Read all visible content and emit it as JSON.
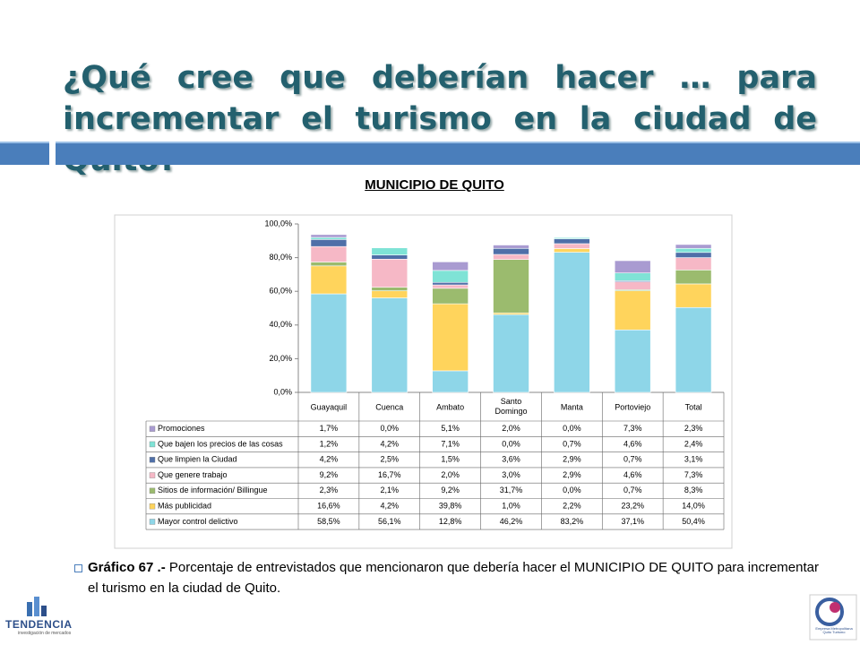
{
  "title": "¿Qué cree que deberían hacer … para incrementar el turismo en la ciudad de Quito?",
  "chart_data": {
    "type": "stacked-bar",
    "title": "MUNICIPIO DE QUITO",
    "categories": [
      "Guayaquil",
      "Cuenca",
      "Ambato",
      "Santo Domingo",
      "Manta",
      "Portoviejo",
      "Total"
    ],
    "ylim": [
      0,
      100
    ],
    "yticks": [
      {
        "value": 0,
        "label": "0,0%"
      },
      {
        "value": 20,
        "label": "20,0%"
      },
      {
        "value": 40,
        "label": "40,0%"
      },
      {
        "value": 60,
        "label": "60,0%"
      },
      {
        "value": 80,
        "label": "80,0%"
      },
      {
        "value": 100,
        "label": "100,0%"
      }
    ],
    "grid": false,
    "series": [
      {
        "name": "Promociones",
        "color": "#a99bd1",
        "values": [
          1.7,
          0.0,
          5.1,
          2.0,
          0.0,
          7.3,
          2.3
        ],
        "value_labels": [
          "1,7%",
          "0,0%",
          "5,1%",
          "2,0%",
          "0,0%",
          "7,3%",
          "2,3%"
        ]
      },
      {
        "name": "Que bajen los precios de las cosas",
        "color": "#7fe3d6",
        "values": [
          1.2,
          4.2,
          7.1,
          0.0,
          0.7,
          4.6,
          2.4
        ],
        "value_labels": [
          "1,2%",
          "4,2%",
          "7,1%",
          "0,0%",
          "0,7%",
          "4,6%",
          "2,4%"
        ]
      },
      {
        "name": "Que limpien la Ciudad",
        "color": "#4f6fa8",
        "values": [
          4.2,
          2.5,
          1.5,
          3.6,
          2.9,
          0.7,
          3.1
        ],
        "value_labels": [
          "4,2%",
          "2,5%",
          "1,5%",
          "3,6%",
          "2,9%",
          "0,7%",
          "3,1%"
        ]
      },
      {
        "name": "Que genere trabajo",
        "color": "#f6b8c6",
        "values": [
          9.2,
          16.7,
          2.0,
          3.0,
          2.9,
          4.6,
          7.3
        ],
        "value_labels": [
          "9,2%",
          "16,7%",
          "2,0%",
          "3,0%",
          "2,9%",
          "4,6%",
          "7,3%"
        ]
      },
      {
        "name": "Sitios de información/ Billingue",
        "color": "#9bbb6e",
        "values": [
          2.3,
          2.1,
          9.2,
          31.7,
          0.0,
          0.7,
          8.3
        ],
        "value_labels": [
          "2,3%",
          "2,1%",
          "9,2%",
          "31,7%",
          "0,0%",
          "0,7%",
          "8,3%"
        ]
      },
      {
        "name": "Más publicidad",
        "color": "#ffd45c",
        "values": [
          16.6,
          4.2,
          39.8,
          1.0,
          2.2,
          23.2,
          14.0
        ],
        "value_labels": [
          "16,6%",
          "4,2%",
          "39,8%",
          "1,0%",
          "2,2%",
          "23,2%",
          "14,0%"
        ]
      },
      {
        "name": "Mayor control delictivo",
        "color": "#8ed6e8",
        "values": [
          58.5,
          56.1,
          12.8,
          46.2,
          83.2,
          37.1,
          50.4
        ],
        "value_labels": [
          "58,5%",
          "56,1%",
          "12,8%",
          "46,2%",
          "83,2%",
          "37,1%",
          "50,4%"
        ]
      }
    ]
  },
  "caption": {
    "label": "Gráfico 67 .-",
    "text": "Porcentaje de entrevistados que mencionaron que debería hacer el MUNICIPIO DE QUITO para incrementar el turismo en la ciudad de Quito."
  },
  "logos": {
    "left": "TENDENCIA",
    "left_sub": "investigación de mercados",
    "right": "Empresa Metropolitana Quito Turismo"
  }
}
